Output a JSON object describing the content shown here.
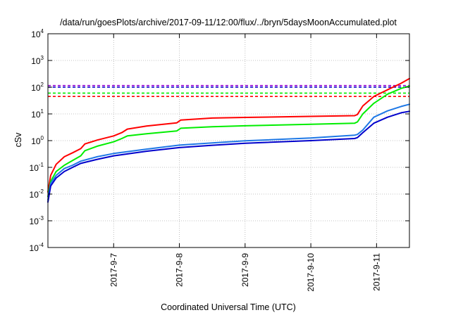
{
  "chart_data": {
    "type": "line",
    "title": "/data/run/goesPlots/archive/2017-09-11/12:00/flux/../bryn/5daysMoonAccumulated.plot",
    "xlabel": "Coordinated Universal Time (UTC)",
    "ylabel": "cSv",
    "yscale": "log",
    "ylim": [
      0.0001,
      10000
    ],
    "yticks": [
      {
        "base": "10",
        "exp": "-4",
        "value": 0.0001
      },
      {
        "base": "10",
        "exp": "-3",
        "value": 0.001
      },
      {
        "base": "10",
        "exp": "-2",
        "value": 0.01
      },
      {
        "base": "10",
        "exp": "-1",
        "value": 0.1
      },
      {
        "base": "10",
        "exp": "0",
        "value": 1
      },
      {
        "base": "10",
        "exp": "1",
        "value": 10
      },
      {
        "base": "10",
        "exp": "2",
        "value": 100
      },
      {
        "base": "10",
        "exp": "3",
        "value": 1000
      },
      {
        "base": "10",
        "exp": "4",
        "value": 10000
      }
    ],
    "xlim": [
      "2017-09-06 00:00",
      "2017-09-11 12:00"
    ],
    "xticks": [
      "2017-9-7",
      "2017-9-8",
      "2017-9-9",
      "2017-9-10",
      "2017-9-11"
    ],
    "grid": true,
    "series": [
      {
        "color": "#ff0000",
        "points": [
          [
            "2017-09-06 00:00",
            0.012
          ],
          [
            "2017-09-06 01:00",
            0.05
          ],
          [
            "2017-09-06 03:00",
            0.13
          ],
          [
            "2017-09-06 06:00",
            0.25
          ],
          [
            "2017-09-06 09:00",
            0.35
          ],
          [
            "2017-09-06 12:00",
            0.5
          ],
          [
            "2017-09-06 13:30",
            0.75
          ],
          [
            "2017-09-06 18:00",
            1.05
          ],
          [
            "2017-09-07 00:00",
            1.5
          ],
          [
            "2017-09-07 03:00",
            2.0
          ],
          [
            "2017-09-07 05:00",
            2.7
          ],
          [
            "2017-09-07 12:00",
            3.5
          ],
          [
            "2017-09-07 23:00",
            4.6
          ],
          [
            "2017-09-08 00:30",
            5.9
          ],
          [
            "2017-09-08 12:00",
            7.0
          ],
          [
            "2017-09-09 00:00",
            7.4
          ],
          [
            "2017-09-10 00:00",
            8.1
          ],
          [
            "2017-09-10 16:00",
            8.6
          ],
          [
            "2017-09-10 17:00",
            9.5
          ],
          [
            "2017-09-10 19:00",
            20
          ],
          [
            "2017-09-10 23:00",
            45
          ],
          [
            "2017-09-11 04:00",
            80
          ],
          [
            "2017-09-11 09:00",
            140
          ],
          [
            "2017-09-11 12:00",
            210
          ]
        ]
      },
      {
        "color": "#00ee00",
        "points": [
          [
            "2017-09-06 00:00",
            0.008
          ],
          [
            "2017-09-06 01:00",
            0.03
          ],
          [
            "2017-09-06 03:00",
            0.07
          ],
          [
            "2017-09-06 06:00",
            0.12
          ],
          [
            "2017-09-06 09:00",
            0.18
          ],
          [
            "2017-09-06 12:00",
            0.27
          ],
          [
            "2017-09-06 13:30",
            0.42
          ],
          [
            "2017-09-06 18:00",
            0.62
          ],
          [
            "2017-09-07 00:00",
            0.9
          ],
          [
            "2017-09-07 03:00",
            1.2
          ],
          [
            "2017-09-07 05:00",
            1.5
          ],
          [
            "2017-09-07 12:00",
            1.8
          ],
          [
            "2017-09-07 23:00",
            2.3
          ],
          [
            "2017-09-08 00:30",
            2.9
          ],
          [
            "2017-09-08 12:00",
            3.3
          ],
          [
            "2017-09-09 00:00",
            3.6
          ],
          [
            "2017-09-10 00:00",
            4.1
          ],
          [
            "2017-09-10 16:00",
            4.5
          ],
          [
            "2017-09-10 17:00",
            5.0
          ],
          [
            "2017-09-10 19:00",
            10
          ],
          [
            "2017-09-10 23:00",
            25
          ],
          [
            "2017-09-11 04:00",
            55
          ],
          [
            "2017-09-11 09:00",
            90
          ],
          [
            "2017-09-11 12:00",
            110
          ]
        ]
      },
      {
        "color": "#1e78e6",
        "points": [
          [
            "2017-09-06 00:00",
            0.006
          ],
          [
            "2017-09-06 01:00",
            0.025
          ],
          [
            "2017-09-06 03:00",
            0.05
          ],
          [
            "2017-09-06 06:00",
            0.09
          ],
          [
            "2017-09-06 09:00",
            0.12
          ],
          [
            "2017-09-06 12:00",
            0.17
          ],
          [
            "2017-09-06 18:00",
            0.25
          ],
          [
            "2017-09-07 00:00",
            0.33
          ],
          [
            "2017-09-07 12:00",
            0.48
          ],
          [
            "2017-09-08 00:00",
            0.68
          ],
          [
            "2017-09-08 12:00",
            0.82
          ],
          [
            "2017-09-09 00:00",
            0.98
          ],
          [
            "2017-09-10 00:00",
            1.25
          ],
          [
            "2017-09-10 16:00",
            1.6
          ],
          [
            "2017-09-10 17:00",
            1.7
          ],
          [
            "2017-09-10 19:00",
            2.5
          ],
          [
            "2017-09-10 23:00",
            7.5
          ],
          [
            "2017-09-11 04:00",
            13
          ],
          [
            "2017-09-11 09:00",
            19
          ],
          [
            "2017-09-11 12:00",
            23
          ]
        ]
      },
      {
        "color": "#0000cc",
        "points": [
          [
            "2017-09-06 00:00",
            0.005
          ],
          [
            "2017-09-06 01:00",
            0.02
          ],
          [
            "2017-09-06 03:00",
            0.04
          ],
          [
            "2017-09-06 06:00",
            0.07
          ],
          [
            "2017-09-06 09:00",
            0.1
          ],
          [
            "2017-09-06 12:00",
            0.14
          ],
          [
            "2017-09-06 18:00",
            0.2
          ],
          [
            "2017-09-07 00:00",
            0.27
          ],
          [
            "2017-09-07 12:00",
            0.4
          ],
          [
            "2017-09-08 00:00",
            0.55
          ],
          [
            "2017-09-08 12:00",
            0.67
          ],
          [
            "2017-09-09 00:00",
            0.8
          ],
          [
            "2017-09-10 00:00",
            1.0
          ],
          [
            "2017-09-10 16:00",
            1.2
          ],
          [
            "2017-09-10 17:00",
            1.3
          ],
          [
            "2017-09-10 19:00",
            2.0
          ],
          [
            "2017-09-10 23:00",
            4.5
          ],
          [
            "2017-09-11 04:00",
            7.5
          ],
          [
            "2017-09-11 09:00",
            11
          ],
          [
            "2017-09-11 12:00",
            12.5
          ]
        ]
      }
    ],
    "thresholds": [
      {
        "color": "#9400d3",
        "value": 115
      },
      {
        "color": "#0000cc",
        "value": 100
      },
      {
        "color": "#00ee00",
        "value": 60
      },
      {
        "color": "#ff0000",
        "value": 45
      }
    ]
  }
}
